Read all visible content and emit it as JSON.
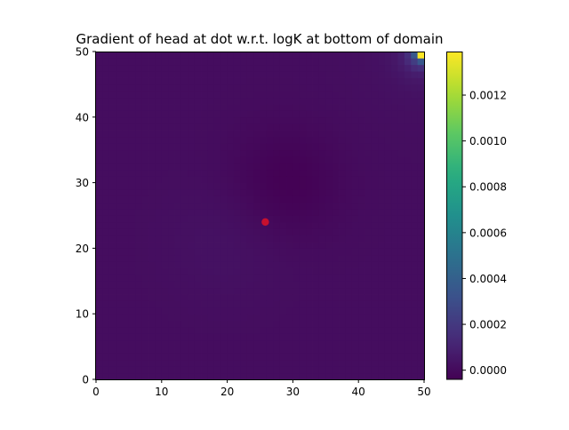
{
  "chart_data": {
    "type": "heatmap",
    "title": "Gradient of head at dot w.r.t. logK at bottom of domain",
    "xlabel": "",
    "ylabel": "",
    "xlim": [
      0,
      50
    ],
    "ylim": [
      0,
      50
    ],
    "x_ticks": [
      "0",
      "10",
      "20",
      "30",
      "40",
      "50"
    ],
    "y_ticks": [
      "0",
      "10",
      "20",
      "30",
      "40",
      "50"
    ],
    "grid_cells": 50,
    "colormap": "viridis",
    "colorbar": {
      "min": -4e-05,
      "max": 0.00139,
      "ticks": [
        "0.0000",
        "0.0002",
        "0.0004",
        "0.0006",
        "0.0008",
        "0.0010",
        "0.0012"
      ],
      "tick_values": [
        0.0,
        0.0002,
        0.0004,
        0.0006,
        0.0008,
        0.001,
        0.0012
      ]
    },
    "background_level": 1e-05,
    "hotspot": {
      "x": 49.5,
      "y": 49.5,
      "value": 0.00139
    },
    "corner_decay_points": [
      {
        "x": 48.5,
        "y": 49.5,
        "value": 0.00035
      },
      {
        "x": 49.5,
        "y": 48.5,
        "value": 0.00035
      },
      {
        "x": 48.5,
        "y": 48.5,
        "value": 0.00022
      }
    ],
    "low_region": {
      "x": 29,
      "y": 30,
      "value": -4e-05
    },
    "mild_region": {
      "x": 20,
      "y": 21,
      "value": 3e-05
    },
    "marker": {
      "x": 25.8,
      "y": 24.0,
      "color": "#c8102e"
    }
  }
}
